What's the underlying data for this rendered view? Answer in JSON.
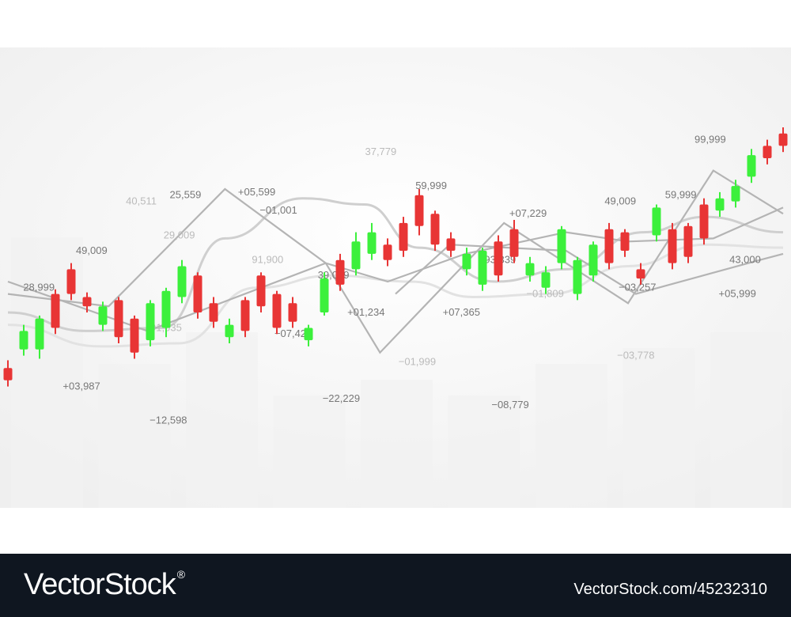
{
  "colors": {
    "up": "#3cf03c",
    "down": "#e83535",
    "label": "#777777",
    "faint_label": "#bbbbbb",
    "line": "#b4b4b4",
    "bg_bar": "#f1f1f1",
    "watermark_bg": "#0f1620"
  },
  "watermark": {
    "logo": "VectorStock",
    "registered": "®",
    "url": "VectorStock.com/45232310"
  },
  "chart_data": {
    "type": "candlestick",
    "title": "",
    "xlabel": "",
    "ylabel": "",
    "candles": [
      {
        "dir": "down",
        "open": 0.32,
        "close": 0.28,
        "high": 0.345,
        "low": 0.26
      },
      {
        "dir": "up",
        "open": 0.38,
        "close": 0.44,
        "high": 0.46,
        "low": 0.36
      },
      {
        "dir": "up",
        "open": 0.38,
        "close": 0.48,
        "high": 0.49,
        "low": 0.35
      },
      {
        "dir": "down",
        "open": 0.56,
        "close": 0.45,
        "high": 0.575,
        "low": 0.43
      },
      {
        "dir": "down",
        "open": 0.64,
        "close": 0.56,
        "high": 0.66,
        "low": 0.54
      },
      {
        "dir": "down",
        "open": 0.55,
        "close": 0.52,
        "high": 0.565,
        "low": 0.5
      },
      {
        "dir": "up",
        "open": 0.46,
        "close": 0.52,
        "high": 0.535,
        "low": 0.44
      },
      {
        "dir": "down",
        "open": 0.54,
        "close": 0.42,
        "high": 0.55,
        "low": 0.4
      },
      {
        "dir": "down",
        "open": 0.48,
        "close": 0.37,
        "high": 0.49,
        "low": 0.35
      },
      {
        "dir": "up",
        "open": 0.41,
        "close": 0.53,
        "high": 0.54,
        "low": 0.39
      },
      {
        "dir": "up",
        "open": 0.45,
        "close": 0.57,
        "high": 0.58,
        "low": 0.42
      },
      {
        "dir": "up",
        "open": 0.55,
        "close": 0.65,
        "high": 0.67,
        "low": 0.53
      },
      {
        "dir": "down",
        "open": 0.62,
        "close": 0.5,
        "high": 0.63,
        "low": 0.48
      },
      {
        "dir": "down",
        "open": 0.53,
        "close": 0.47,
        "high": 0.55,
        "low": 0.45
      },
      {
        "dir": "up",
        "open": 0.42,
        "close": 0.46,
        "high": 0.48,
        "low": 0.4
      },
      {
        "dir": "down",
        "open": 0.54,
        "close": 0.44,
        "high": 0.55,
        "low": 0.42
      },
      {
        "dir": "down",
        "open": 0.62,
        "close": 0.52,
        "high": 0.63,
        "low": 0.5
      },
      {
        "dir": "down",
        "open": 0.56,
        "close": 0.45,
        "high": 0.57,
        "low": 0.43
      },
      {
        "dir": "down",
        "open": 0.53,
        "close": 0.47,
        "high": 0.55,
        "low": 0.45
      },
      {
        "dir": "up",
        "open": 0.41,
        "close": 0.45,
        "high": 0.46,
        "low": 0.39
      },
      {
        "dir": "up",
        "open": 0.5,
        "close": 0.61,
        "high": 0.63,
        "low": 0.49
      },
      {
        "dir": "down",
        "open": 0.67,
        "close": 0.59,
        "high": 0.69,
        "low": 0.57
      },
      {
        "dir": "up",
        "open": 0.64,
        "close": 0.73,
        "high": 0.76,
        "low": 0.62
      },
      {
        "dir": "up",
        "open": 0.69,
        "close": 0.76,
        "high": 0.79,
        "low": 0.67
      },
      {
        "dir": "down",
        "open": 0.72,
        "close": 0.67,
        "high": 0.74,
        "low": 0.65
      },
      {
        "dir": "down",
        "open": 0.79,
        "close": 0.7,
        "high": 0.81,
        "low": 0.68
      },
      {
        "dir": "down",
        "open": 0.88,
        "close": 0.78,
        "high": 0.9,
        "low": 0.75
      },
      {
        "dir": "down",
        "open": 0.82,
        "close": 0.72,
        "high": 0.83,
        "low": 0.7
      },
      {
        "dir": "down",
        "open": 0.74,
        "close": 0.7,
        "high": 0.76,
        "low": 0.68
      },
      {
        "dir": "up",
        "open": 0.64,
        "close": 0.69,
        "high": 0.71,
        "low": 0.62
      },
      {
        "dir": "up",
        "open": 0.59,
        "close": 0.7,
        "high": 0.71,
        "low": 0.57
      },
      {
        "dir": "down",
        "open": 0.73,
        "close": 0.62,
        "high": 0.75,
        "low": 0.6
      },
      {
        "dir": "down",
        "open": 0.77,
        "close": 0.68,
        "high": 0.8,
        "low": 0.66
      },
      {
        "dir": "up",
        "open": 0.62,
        "close": 0.66,
        "high": 0.68,
        "low": 0.6
      },
      {
        "dir": "up",
        "open": 0.58,
        "close": 0.63,
        "high": 0.65,
        "low": 0.56
      },
      {
        "dir": "up",
        "open": 0.66,
        "close": 0.77,
        "high": 0.78,
        "low": 0.64
      },
      {
        "dir": "up",
        "open": 0.56,
        "close": 0.67,
        "high": 0.68,
        "low": 0.54
      },
      {
        "dir": "up",
        "open": 0.62,
        "close": 0.72,
        "high": 0.73,
        "low": 0.6
      },
      {
        "dir": "down",
        "open": 0.77,
        "close": 0.66,
        "high": 0.79,
        "low": 0.64
      },
      {
        "dir": "down",
        "open": 0.76,
        "close": 0.7,
        "high": 0.77,
        "low": 0.68
      },
      {
        "dir": "down",
        "open": 0.64,
        "close": 0.61,
        "high": 0.66,
        "low": 0.59
      },
      {
        "dir": "up",
        "open": 0.75,
        "close": 0.84,
        "high": 0.85,
        "low": 0.73
      },
      {
        "dir": "down",
        "open": 0.77,
        "close": 0.66,
        "high": 0.79,
        "low": 0.64
      },
      {
        "dir": "down",
        "open": 0.78,
        "close": 0.68,
        "high": 0.79,
        "low": 0.66
      },
      {
        "dir": "down",
        "open": 0.85,
        "close": 0.74,
        "high": 0.87,
        "low": 0.72
      },
      {
        "dir": "up",
        "open": 0.83,
        "close": 0.87,
        "high": 0.89,
        "low": 0.81
      },
      {
        "dir": "up",
        "open": 0.86,
        "close": 0.91,
        "high": 0.93,
        "low": 0.84
      },
      {
        "dir": "up",
        "open": 0.94,
        "close": 1.01,
        "high": 1.03,
        "low": 0.92
      },
      {
        "dir": "down",
        "open": 1.04,
        "close": 1.0,
        "high": 1.06,
        "low": 0.98
      },
      {
        "dir": "down",
        "open": 1.08,
        "close": 1.04,
        "high": 1.1,
        "low": 1.02
      }
    ],
    "annotations": [
      {
        "text": "28,999",
        "dx": 0.04,
        "dy": 0.57,
        "tone": "label"
      },
      {
        "text": "49,009",
        "dx": 0.108,
        "dy": 0.69,
        "tone": "label"
      },
      {
        "text": "40,511",
        "dx": 0.172,
        "dy": 0.85,
        "tone": "faint_label"
      },
      {
        "text": "25,559",
        "dx": 0.229,
        "dy": 0.87,
        "tone": "label"
      },
      {
        "text": "29,009",
        "dx": 0.221,
        "dy": 0.74,
        "tone": "faint_label"
      },
      {
        "text": "+05,599",
        "dx": 0.321,
        "dy": 0.88,
        "tone": "label"
      },
      {
        "text": "−01,001",
        "dx": 0.349,
        "dy": 0.82,
        "tone": "label"
      },
      {
        "text": "91,900",
        "dx": 0.335,
        "dy": 0.66,
        "tone": "faint_label"
      },
      {
        "text": "37,779",
        "dx": 0.481,
        "dy": 1.01,
        "tone": "faint_label"
      },
      {
        "text": "39,009",
        "dx": 0.42,
        "dy": 0.61,
        "tone": "label"
      },
      {
        "text": "59,999",
        "dx": 0.546,
        "dy": 0.9,
        "tone": "label"
      },
      {
        "text": "+07,229",
        "dx": 0.671,
        "dy": 0.81,
        "tone": "label"
      },
      {
        "text": "93,339",
        "dx": 0.635,
        "dy": 0.66,
        "tone": "label"
      },
      {
        "text": "49,009",
        "dx": 0.79,
        "dy": 0.85,
        "tone": "label"
      },
      {
        "text": "59,999",
        "dx": 0.868,
        "dy": 0.87,
        "tone": "label"
      },
      {
        "text": "99,999",
        "dx": 0.906,
        "dy": 1.05,
        "tone": "label"
      },
      {
        "text": "43,000",
        "dx": 0.951,
        "dy": 0.66,
        "tone": "label"
      },
      {
        "text": "+05,999",
        "dx": 0.941,
        "dy": 0.55,
        "tone": "label"
      },
      {
        "text": "−03,257",
        "dx": 0.812,
        "dy": 0.57,
        "tone": "label"
      },
      {
        "text": "−01,809",
        "dx": 0.693,
        "dy": 0.55,
        "tone": "faint_label"
      },
      {
        "text": "+07,365",
        "dx": 0.585,
        "dy": 0.49,
        "tone": "label"
      },
      {
        "text": "+01,234",
        "dx": 0.462,
        "dy": 0.49,
        "tone": "label"
      },
      {
        "text": "−07,420",
        "dx": 0.368,
        "dy": 0.42,
        "tone": "label"
      },
      {
        "text": "91,035",
        "dx": 0.204,
        "dy": 0.44,
        "tone": "faint_label"
      },
      {
        "text": "+03,987",
        "dx": 0.095,
        "dy": 0.25,
        "tone": "label"
      },
      {
        "text": "−12,598",
        "dx": 0.207,
        "dy": 0.14,
        "tone": "label"
      },
      {
        "text": "−22,229",
        "dx": 0.43,
        "dy": 0.21,
        "tone": "label"
      },
      {
        "text": "−01,999",
        "dx": 0.528,
        "dy": 0.33,
        "tone": "faint_label"
      },
      {
        "text": "−08,779",
        "dx": 0.648,
        "dy": 0.19,
        "tone": "label"
      },
      {
        "text": "−03,778",
        "dx": 0.81,
        "dy": 0.35,
        "tone": "faint_label"
      }
    ],
    "trend_lines": [
      {
        "name": "",
        "style": "solid",
        "points": [
          [
            0,
            0.56
          ],
          [
            0.13,
            0.52
          ],
          [
            0.28,
            0.9
          ],
          [
            0.41,
            0.66
          ],
          [
            0.48,
            0.37
          ],
          [
            0.64,
            0.79
          ],
          [
            0.8,
            0.53
          ],
          [
            0.91,
            0.96
          ],
          [
            1.0,
            0.82
          ]
        ]
      },
      {
        "name": "",
        "style": "solid",
        "points": [
          [
            0,
            0.6
          ],
          [
            0.18,
            0.44
          ],
          [
            0.41,
            0.66
          ],
          [
            0.49,
            0.6
          ],
          [
            0.59,
            0.69
          ],
          [
            0.72,
            0.76
          ],
          [
            0.8,
            0.73
          ],
          [
            0.91,
            0.74
          ],
          [
            1.0,
            0.84
          ]
        ]
      },
      {
        "name": "",
        "style": "solid",
        "points": [
          [
            0.5,
            0.56
          ],
          [
            0.57,
            0.72
          ],
          [
            0.72,
            0.7
          ],
          [
            0.81,
            0.56
          ],
          [
            0.97,
            0.67
          ],
          [
            1.0,
            0.69
          ]
        ]
      }
    ],
    "wave_lines": [
      {
        "name": "",
        "points": [
          [
            0,
            0.5
          ],
          [
            0.1,
            0.44
          ],
          [
            0.2,
            0.45
          ],
          [
            0.28,
            0.74
          ],
          [
            0.38,
            0.87
          ],
          [
            0.46,
            0.85
          ],
          [
            0.53,
            0.71
          ],
          [
            0.63,
            0.6
          ],
          [
            0.72,
            0.64
          ],
          [
            0.82,
            0.76
          ],
          [
            0.9,
            0.81
          ],
          [
            1.0,
            0.76
          ]
        ]
      },
      {
        "name": "",
        "points": [
          [
            0,
            0.46
          ],
          [
            0.12,
            0.39
          ],
          [
            0.22,
            0.4
          ],
          [
            0.32,
            0.58
          ],
          [
            0.42,
            0.62
          ],
          [
            0.52,
            0.6
          ],
          [
            0.6,
            0.55
          ],
          [
            0.7,
            0.56
          ],
          [
            0.8,
            0.65
          ],
          [
            0.9,
            0.72
          ],
          [
            1.0,
            0.71
          ]
        ]
      }
    ],
    "grid": false,
    "legend": "none"
  }
}
